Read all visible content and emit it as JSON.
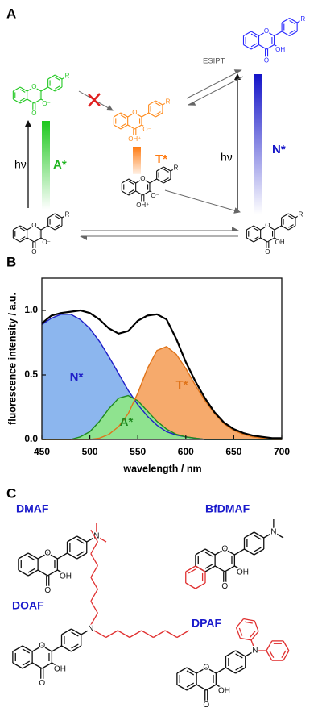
{
  "panel_a": {
    "label": "A",
    "esipt": "ESIPT",
    "hv_left": "hν",
    "hv_right": "hν",
    "a_state": "A*",
    "t_state": "T*",
    "n_state": "N*",
    "molecules": [
      {
        "ring_o": "O",
        "carbonyl": "O",
        "sub3": "OH",
        "r": "R"
      },
      {
        "ring_o": "O",
        "carbonyl": "O",
        "sub3": "O⁻",
        "r": "R"
      },
      {
        "ring_o": "O",
        "carbonyl": "OH⁺",
        "sub3": "O⁻",
        "r": "R"
      },
      {
        "ring_o": "O",
        "carbonyl": "OH⁺",
        "sub3": "O⁻",
        "r": "R"
      },
      {
        "ring_o": "O",
        "carbonyl": "O",
        "sub3": "O⁻",
        "r": "R"
      },
      {
        "ring_o": "O",
        "carbonyl": "O",
        "sub3": "OH",
        "r": "R"
      }
    ]
  },
  "chart_data": {
    "type": "area",
    "label": "B",
    "xlabel": "wavelength / nm",
    "ylabel": "fluorescence intensity / a.u.",
    "x": [
      450,
      460,
      470,
      480,
      490,
      500,
      510,
      520,
      530,
      540,
      550,
      560,
      570,
      580,
      590,
      600,
      610,
      620,
      630,
      640,
      650,
      660,
      670,
      680,
      690,
      700
    ],
    "series": [
      {
        "name": "N*",
        "color": "#1f1fc8",
        "fill": "#8cb6ee",
        "values": [
          0.89,
          0.94,
          0.97,
          0.97,
          0.93,
          0.86,
          0.76,
          0.64,
          0.51,
          0.38,
          0.27,
          0.18,
          0.11,
          0.06,
          0.035,
          0.02,
          0.01,
          0,
          0,
          0,
          0,
          0,
          0,
          0,
          0,
          0
        ]
      },
      {
        "name": "A*",
        "color": "#1f8a1f",
        "fill": "#8fe38f",
        "values": [
          0,
          0,
          0,
          0,
          0.02,
          0.06,
          0.14,
          0.24,
          0.32,
          0.34,
          0.3,
          0.22,
          0.14,
          0.08,
          0.04,
          0.02,
          0.01,
          0,
          0,
          0,
          0,
          0,
          0,
          0,
          0,
          0
        ]
      },
      {
        "name": "T*",
        "color": "#e0741a",
        "fill": "#f6aa6c",
        "values": [
          0,
          0,
          0,
          0,
          0,
          0,
          0.01,
          0.04,
          0.1,
          0.2,
          0.36,
          0.55,
          0.69,
          0.72,
          0.66,
          0.55,
          0.42,
          0.3,
          0.2,
          0.12,
          0.07,
          0.04,
          0.02,
          0.01,
          0,
          0
        ]
      },
      {
        "color": "#000000",
        "values": [
          0.9,
          0.96,
          0.98,
          0.99,
          1.0,
          0.98,
          0.93,
          0.86,
          0.82,
          0.84,
          0.92,
          0.96,
          0.97,
          0.93,
          0.78,
          0.6,
          0.45,
          0.32,
          0.21,
          0.13,
          0.08,
          0.05,
          0.03,
          0.02,
          0.01,
          0.01
        ]
      }
    ],
    "xlim": [
      450,
      700
    ],
    "ylim": [
      0,
      1.25
    ],
    "xticks": [
      450,
      500,
      550,
      600,
      650,
      700
    ],
    "yticks": [
      {
        "value": 0,
        "label": "0.0"
      },
      {
        "value": 0.5,
        "label": "0.5"
      },
      {
        "value": 1,
        "label": "1.0"
      }
    ]
  },
  "panel_c": {
    "label": "C",
    "compounds": [
      {
        "name": "DMAF",
        "ring_o": "O",
        "carbonyl": "O",
        "sub3": "OH",
        "amine": "N"
      },
      {
        "name": "BfDMAF",
        "ring_o": "O",
        "carbonyl": "O",
        "sub3": "OH",
        "amine": "N"
      },
      {
        "name": "DOAF",
        "ring_o": "O",
        "carbonyl": "O",
        "sub3": "OH",
        "amine": "N"
      },
      {
        "name": "DPAF",
        "ring_o": "O",
        "carbonyl": "O",
        "sub3": "OH",
        "amine": "N"
      }
    ]
  }
}
